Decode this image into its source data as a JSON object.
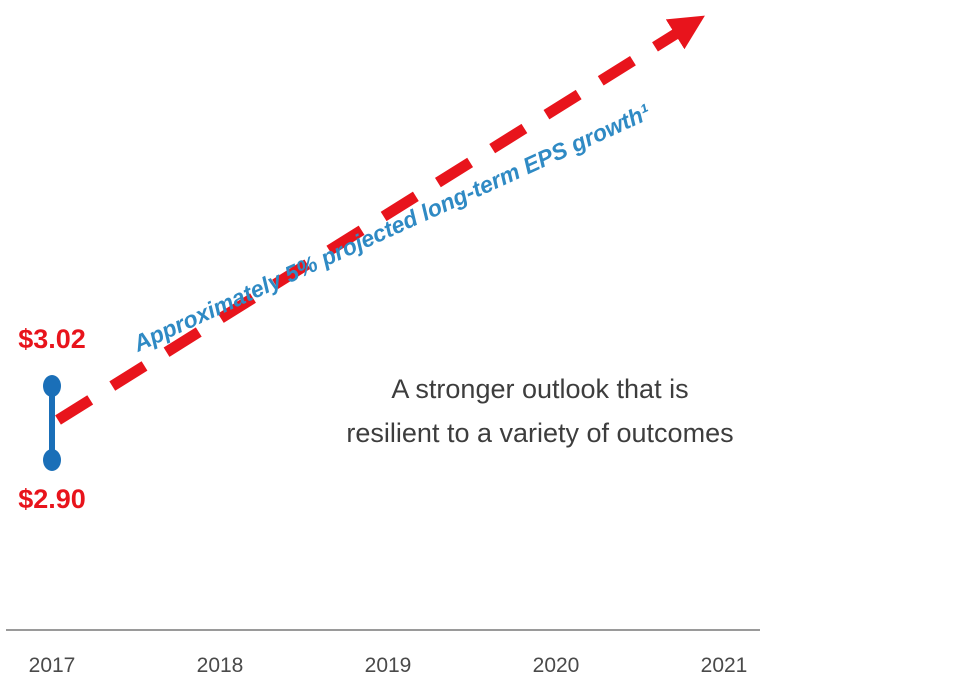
{
  "chart_data": {
    "type": "line",
    "categories": [
      "2017",
      "2018",
      "2019",
      "2020",
      "2021"
    ],
    "range_2017": {
      "low": 2.9,
      "high": 3.02
    },
    "labels": {
      "high": "$3.02",
      "low": "$2.90"
    },
    "series": [
      {
        "values": [
          2.96,
          null,
          null,
          null,
          null
        ]
      }
    ],
    "annotation": "Approximately 5% projected long-term EPS growth¹",
    "note_lines": [
      "A stronger outlook that is",
      "resilient to a variety of outcomes"
    ],
    "colors": {
      "range": "#1a6fb8",
      "arrow": "#e8141c",
      "annotation": "#2f8ac4",
      "axis": "#9a9a9a"
    },
    "grid": false,
    "legend": "none"
  }
}
